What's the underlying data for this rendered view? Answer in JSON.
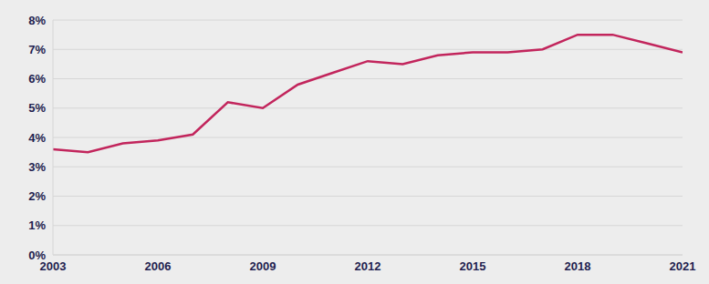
{
  "chart_data": {
    "type": "line",
    "x": [
      2003,
      2004,
      2005,
      2006,
      2007,
      2008,
      2009,
      2010,
      2011,
      2012,
      2013,
      2014,
      2015,
      2016,
      2017,
      2018,
      2019,
      2020,
      2021
    ],
    "values": [
      3.6,
      3.5,
      3.8,
      3.9,
      4.1,
      5.2,
      5.0,
      5.8,
      6.2,
      6.6,
      6.5,
      6.8,
      6.9,
      6.9,
      7.0,
      7.5,
      7.5,
      7.2,
      6.9
    ],
    "color": "#c2255c",
    "xlim": [
      2003,
      2021
    ],
    "xticks": [
      2003,
      2006,
      2009,
      2012,
      2015,
      2018,
      2021
    ],
    "ylim": [
      0,
      8
    ],
    "yticks": [
      {
        "value": 0,
        "label": "0%"
      },
      {
        "value": 1,
        "label": "1%"
      },
      {
        "value": 2,
        "label": "2%"
      },
      {
        "value": 3,
        "label": "3%"
      },
      {
        "value": 4,
        "label": "4%"
      },
      {
        "value": 5,
        "label": "5%"
      },
      {
        "value": 6,
        "label": "6%"
      },
      {
        "value": 7,
        "label": "7%"
      },
      {
        "value": 8,
        "label": "8%"
      }
    ],
    "grid": true
  }
}
